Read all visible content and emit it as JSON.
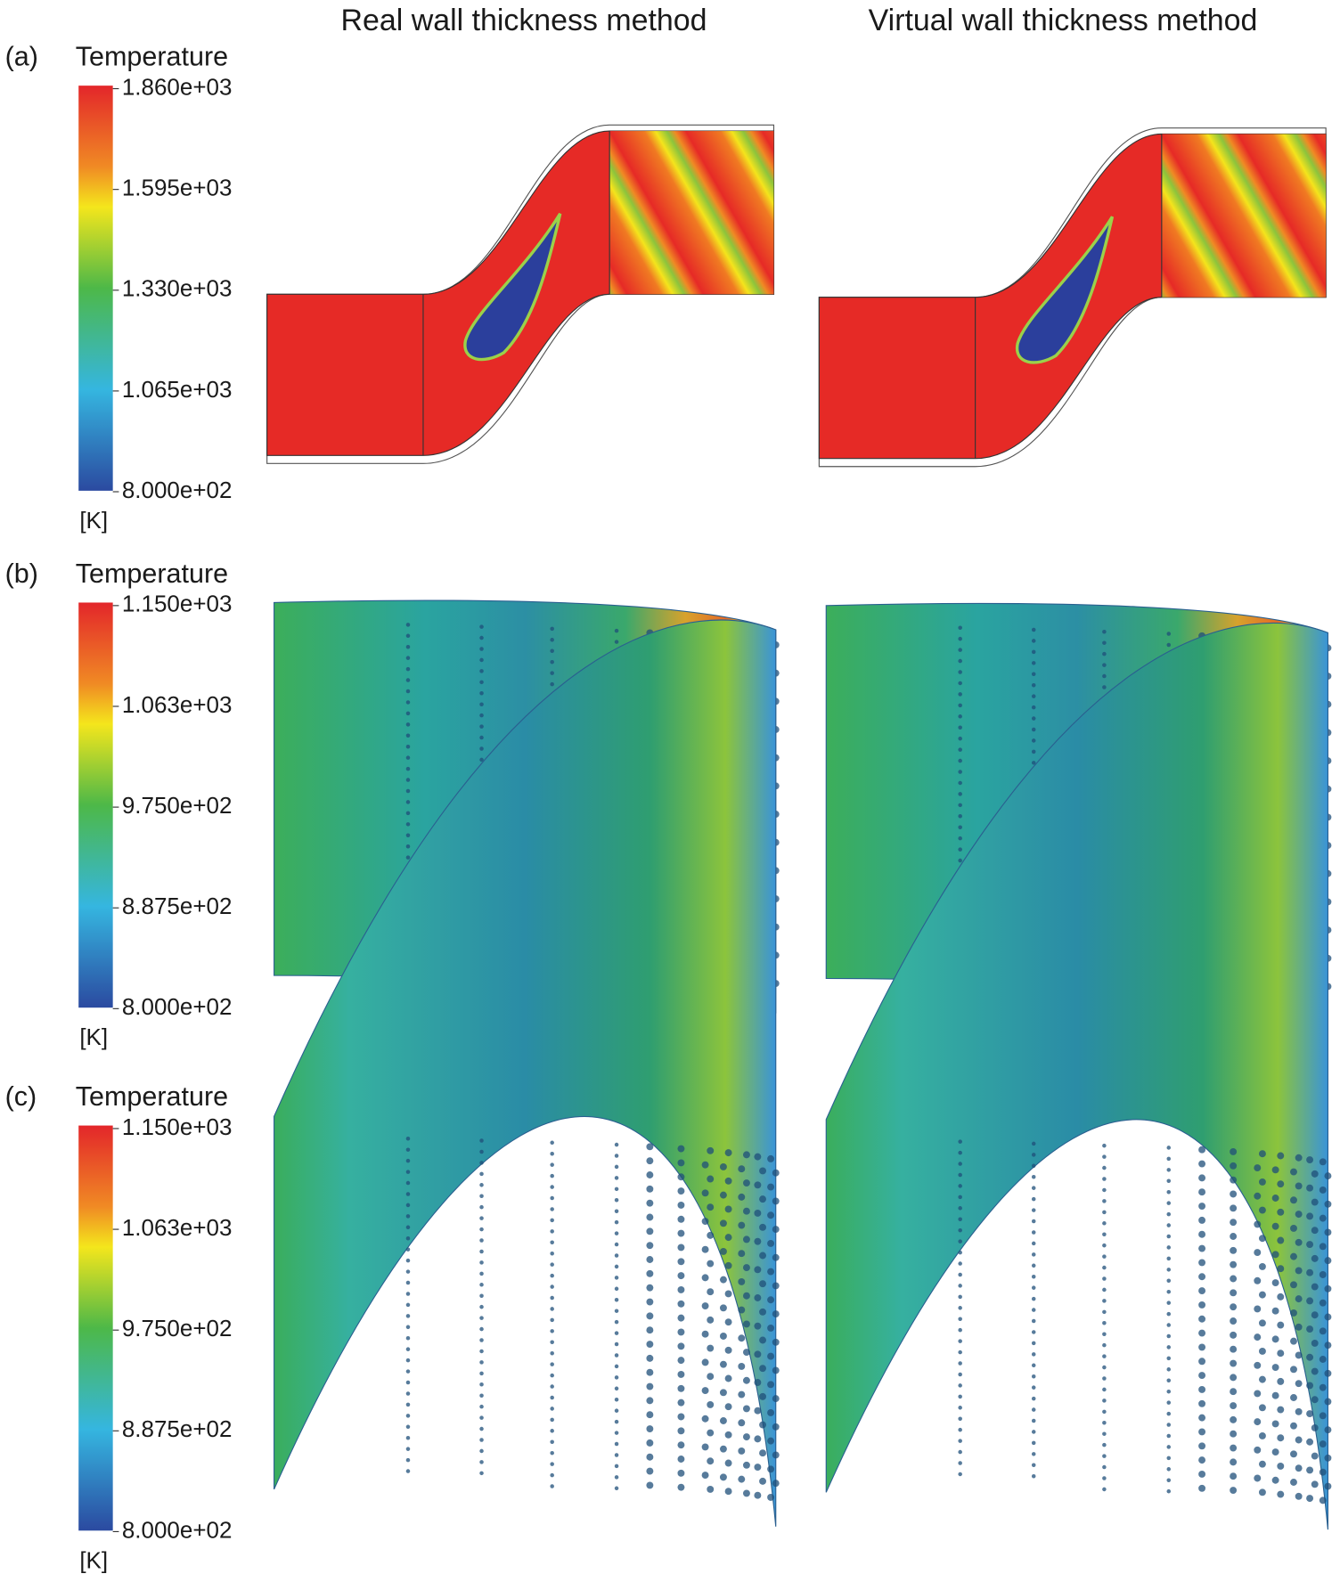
{
  "columns": [
    "Real wall thickness method",
    "Virtual wall thickness method"
  ],
  "panels": [
    {
      "label": "(a)",
      "colorbar": {
        "title": "Temperature",
        "ticks": [
          "1.860e+03",
          "1.595e+03",
          "1.330e+03",
          "1.065e+03",
          "8.000e+02"
        ],
        "unit": "[K]"
      }
    },
    {
      "label": "(b)",
      "colorbar": {
        "title": "Temperature",
        "ticks": [
          "1.150e+03",
          "1.063e+03",
          "9.750e+02",
          "8.875e+02",
          "8.000e+02"
        ],
        "unit": "[K]"
      }
    },
    {
      "label": "(c)",
      "colorbar": {
        "title": "Temperature",
        "ticks": [
          "1.150e+03",
          "1.063e+03",
          "9.750e+02",
          "8.875e+02",
          "8.000e+02"
        ],
        "unit": "[K]"
      }
    }
  ]
}
